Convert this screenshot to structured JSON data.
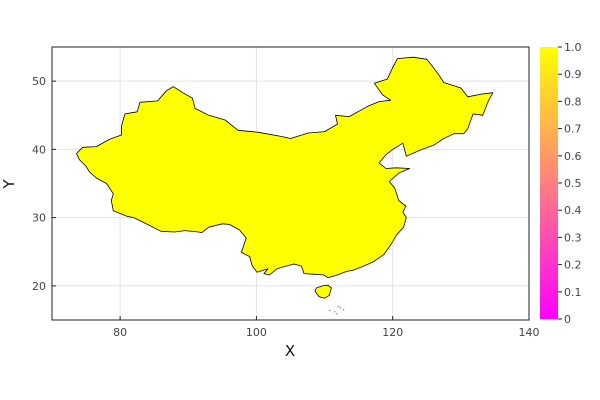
{
  "chart_data": {
    "type": "choropleth",
    "title": "",
    "xlabel": "X",
    "ylabel": "Y",
    "xlim": [
      70,
      140
    ],
    "ylim": [
      15,
      55
    ],
    "x_ticks": [
      "80",
      "100",
      "120",
      "140"
    ],
    "x_tick_values": [
      80,
      100,
      120,
      140
    ],
    "y_ticks": [
      "20",
      "30",
      "40",
      "50"
    ],
    "y_tick_values": [
      20,
      30,
      40,
      50
    ],
    "grid": true,
    "region": {
      "name": "China",
      "value": 1.0,
      "fill_color": "#ffff00",
      "outline_color": "#000000"
    },
    "colorbar": {
      "min": 0,
      "max": 1,
      "min_color": "#ff00ff",
      "mid_color": "#ff7f7f",
      "max_color": "#ffff00",
      "ticks": [
        "0",
        "0.1",
        "0.2",
        "0.3",
        "0.4",
        "0.5",
        "0.6",
        "0.7",
        "0.8",
        "0.9",
        "1.0"
      ],
      "tick_values": [
        0,
        0.1,
        0.2,
        0.3,
        0.4,
        0.5,
        0.6,
        0.7,
        0.8,
        0.9,
        1.0
      ]
    },
    "mainland_outline": [
      [
        73.6,
        39.4
      ],
      [
        74.5,
        40.3
      ],
      [
        76.5,
        40.4
      ],
      [
        78.5,
        41.5
      ],
      [
        80.2,
        42.1
      ],
      [
        80.2,
        43.4
      ],
      [
        80.7,
        45.2
      ],
      [
        82.5,
        45.5
      ],
      [
        82.9,
        46.9
      ],
      [
        85.5,
        47.1
      ],
      [
        86.8,
        48.6
      ],
      [
        87.8,
        49.2
      ],
      [
        89.2,
        48.3
      ],
      [
        90.6,
        47.5
      ],
      [
        91.0,
        46.0
      ],
      [
        93.0,
        45.0
      ],
      [
        95.4,
        44.3
      ],
      [
        97.3,
        42.8
      ],
      [
        100.3,
        42.5
      ],
      [
        103.6,
        41.9
      ],
      [
        105.0,
        41.6
      ],
      [
        107.6,
        42.4
      ],
      [
        110.0,
        42.6
      ],
      [
        111.9,
        43.7
      ],
      [
        111.6,
        45.0
      ],
      [
        113.6,
        44.8
      ],
      [
        116.5,
        46.4
      ],
      [
        118.0,
        47.0
      ],
      [
        119.7,
        47.2
      ],
      [
        118.5,
        48.0
      ],
      [
        117.3,
        49.7
      ],
      [
        119.2,
        50.3
      ],
      [
        120.0,
        52.0
      ],
      [
        120.7,
        53.3
      ],
      [
        123.0,
        53.5
      ],
      [
        125.0,
        53.2
      ],
      [
        126.5,
        51.3
      ],
      [
        127.5,
        49.8
      ],
      [
        130.0,
        49.0
      ],
      [
        131.0,
        47.7
      ],
      [
        133.0,
        48.1
      ],
      [
        134.7,
        48.3
      ],
      [
        134.0,
        47.0
      ],
      [
        133.2,
        45.0
      ],
      [
        131.8,
        45.2
      ],
      [
        131.0,
        43.0
      ],
      [
        130.4,
        42.3
      ],
      [
        129.0,
        42.3
      ],
      [
        127.5,
        41.6
      ],
      [
        126.0,
        40.6
      ],
      [
        124.3,
        40.0
      ],
      [
        122.0,
        39.0
      ],
      [
        121.5,
        40.9
      ],
      [
        120.0,
        40.0
      ],
      [
        119.0,
        39.2
      ],
      [
        118.0,
        38.0
      ],
      [
        119.0,
        37.2
      ],
      [
        120.5,
        37.3
      ],
      [
        122.5,
        37.2
      ],
      [
        121.0,
        36.6
      ],
      [
        119.5,
        35.3
      ],
      [
        120.3,
        34.3
      ],
      [
        120.9,
        32.5
      ],
      [
        121.9,
        31.7
      ],
      [
        121.5,
        30.8
      ],
      [
        122.0,
        30.0
      ],
      [
        121.6,
        28.6
      ],
      [
        120.6,
        27.5
      ],
      [
        119.7,
        26.0
      ],
      [
        118.7,
        24.6
      ],
      [
        117.1,
        23.5
      ],
      [
        115.5,
        22.8
      ],
      [
        114.2,
        22.3
      ],
      [
        113.2,
        22.1
      ],
      [
        111.6,
        21.5
      ],
      [
        110.5,
        21.2
      ],
      [
        109.9,
        21.6
      ],
      [
        108.6,
        21.7
      ],
      [
        107.0,
        21.8
      ],
      [
        106.6,
        22.9
      ],
      [
        105.5,
        23.2
      ],
      [
        104.0,
        22.8
      ],
      [
        103.0,
        22.5
      ],
      [
        101.9,
        21.6
      ],
      [
        101.1,
        21.8
      ],
      [
        101.7,
        22.5
      ],
      [
        100.1,
        22.0
      ],
      [
        99.4,
        22.9
      ],
      [
        99.0,
        24.3
      ],
      [
        97.8,
        24.9
      ],
      [
        98.5,
        27.0
      ],
      [
        97.5,
        28.2
      ],
      [
        96.0,
        29.0
      ],
      [
        95.0,
        29.1
      ],
      [
        93.0,
        28.6
      ],
      [
        92.0,
        27.8
      ],
      [
        91.5,
        27.9
      ],
      [
        89.5,
        28.1
      ],
      [
        88.0,
        27.9
      ],
      [
        86.0,
        28.0
      ],
      [
        84.0,
        29.0
      ],
      [
        82.0,
        30.0
      ],
      [
        81.0,
        30.2
      ],
      [
        79.0,
        31.0
      ],
      [
        78.7,
        32.5
      ],
      [
        79.0,
        33.5
      ],
      [
        78.0,
        35.0
      ],
      [
        76.5,
        35.8
      ],
      [
        75.5,
        36.7
      ],
      [
        75.0,
        37.5
      ],
      [
        74.0,
        38.5
      ],
      [
        73.6,
        39.4
      ]
    ],
    "island_outline": [
      [
        108.6,
        19.2
      ],
      [
        109.2,
        18.4
      ],
      [
        110.0,
        18.2
      ],
      [
        110.7,
        18.6
      ],
      [
        111.0,
        19.7
      ],
      [
        110.5,
        20.1
      ],
      [
        109.7,
        20.0
      ],
      [
        108.8,
        19.7
      ],
      [
        108.6,
        19.2
      ]
    ],
    "dots": [
      [
        111.5,
        16.2
      ],
      [
        112.3,
        16.8
      ],
      [
        112.8,
        16.5
      ],
      [
        111.8,
        15.9
      ],
      [
        110.8,
        16.4
      ],
      [
        112.0,
        17.0
      ]
    ]
  }
}
